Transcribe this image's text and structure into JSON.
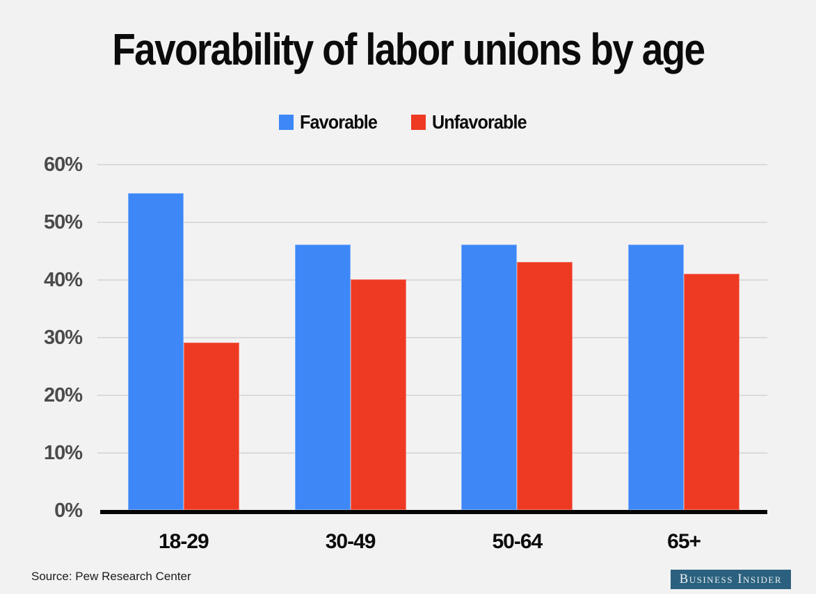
{
  "title": "Favorability of labor unions by age",
  "legend": {
    "items": [
      {
        "label": "Favorable",
        "color": "#3D87F7"
      },
      {
        "label": "Unfavorable",
        "color": "#EE3A22"
      }
    ]
  },
  "footer": {
    "source": "Source: Pew Research Center",
    "brand": "Business Insider"
  },
  "colors": {
    "background": "#f2f2f2",
    "gridline": "#dadada",
    "axis": "#050505",
    "favorable": "#3D87F7",
    "unfavorable": "#EE3A22",
    "badge_bg": "#2B617E",
    "badge_text": "#E7EEF2",
    "ytick_text": "#4b4b4b",
    "title_text": "#0b0b0b"
  },
  "chart_data": {
    "type": "bar",
    "title": "Favorability of labor unions by age",
    "categories": [
      "18-29",
      "30-49",
      "50-64",
      "65+"
    ],
    "series": [
      {
        "name": "Favorable",
        "color": "#3D87F7",
        "values": [
          55,
          46,
          46,
          46
        ]
      },
      {
        "name": "Unfavorable",
        "color": "#EE3A22",
        "values": [
          29,
          40,
          43,
          41
        ]
      }
    ],
    "xlabel": "",
    "ylabel": "",
    "ylim": [
      0,
      60
    ],
    "yticks": [
      "0%",
      "10%",
      "20%",
      "30%",
      "40%",
      "50%",
      "60%"
    ],
    "ytick_values": [
      0,
      10,
      20,
      30,
      40,
      50,
      60
    ],
    "grid": true,
    "legend_position": "top",
    "source": "Pew Research Center"
  }
}
